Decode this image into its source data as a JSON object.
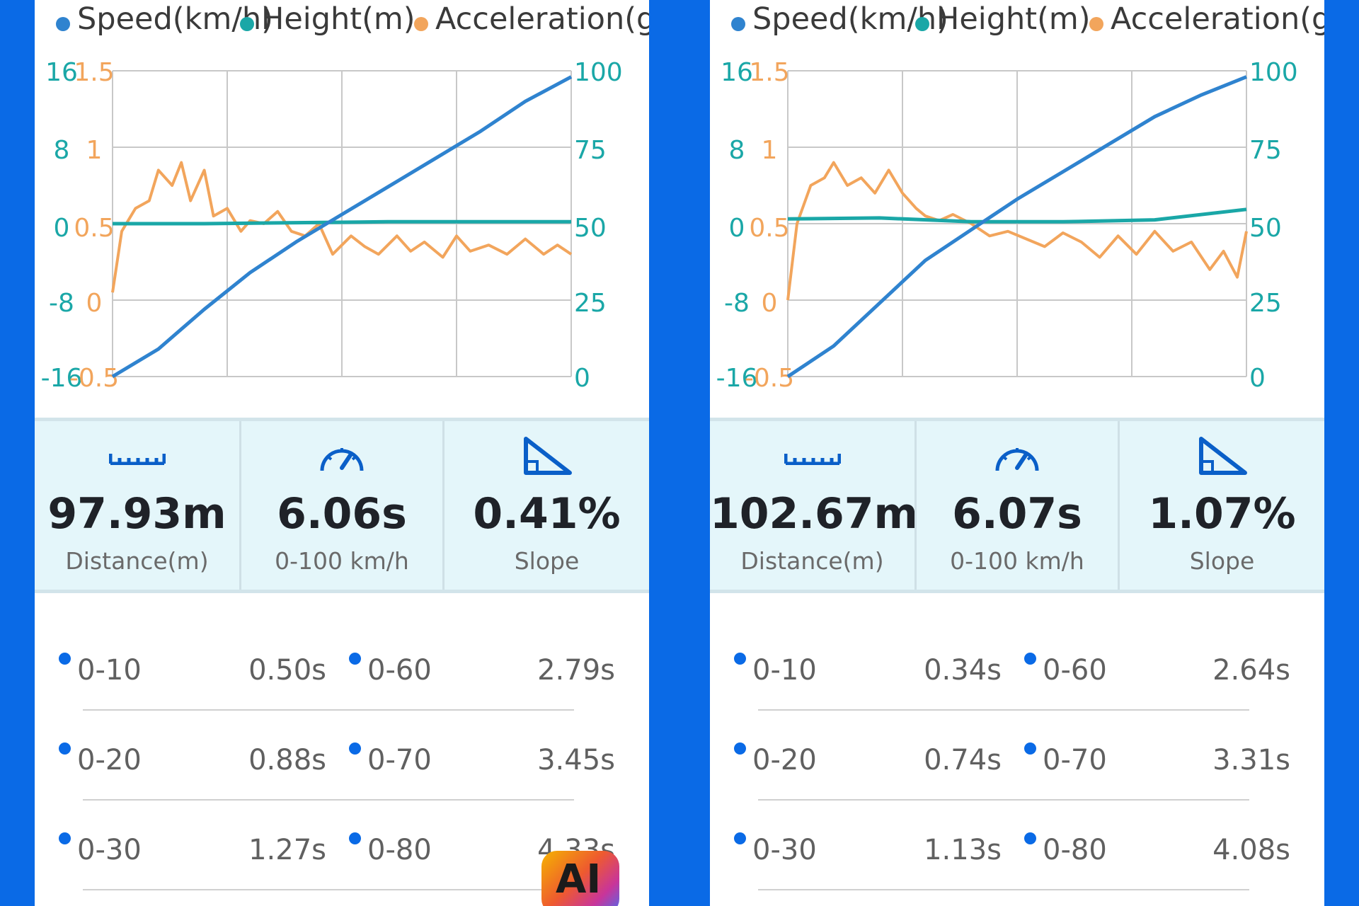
{
  "colors": {
    "speed": "#2f83cf",
    "height": "#1aa7a7",
    "acceleration": "#f2a55c",
    "accent": "#0a6ae6"
  },
  "legend": [
    {
      "label": "Speed(km/h)",
      "color": "#2f83cf"
    },
    {
      "label": "Height(m)",
      "color": "#1aa7a7"
    },
    {
      "label": "Acceleration(g)",
      "color": "#f2a55c"
    }
  ],
  "axes": {
    "height_ticks": [
      "16",
      "8",
      "0",
      "-8",
      "-16"
    ],
    "accel_ticks": [
      "1.5",
      "1",
      "0.5",
      "0",
      "-0.5"
    ],
    "speed_ticks": [
      "100",
      "75",
      "50",
      "25",
      "0"
    ]
  },
  "panels": [
    {
      "stats": [
        {
          "icon": "ruler-icon",
          "value": "97.93m",
          "label": "Distance(m)"
        },
        {
          "icon": "speedometer-icon",
          "value": "6.06s",
          "label": "0-100 km/h"
        },
        {
          "icon": "slope-icon",
          "value": "0.41%",
          "label": "Slope"
        }
      ],
      "splits": [
        {
          "range_a": "0-10",
          "time_a": "0.50s",
          "range_b": "0-60",
          "time_b": "2.79s"
        },
        {
          "range_a": "0-20",
          "time_a": "0.88s",
          "range_b": "0-70",
          "time_b": "3.45s"
        },
        {
          "range_a": "0-30",
          "time_a": "1.27s",
          "range_b": "0-80",
          "time_b": "4.33s"
        }
      ]
    },
    {
      "stats": [
        {
          "icon": "ruler-icon",
          "value": "102.67m",
          "label": "Distance(m)"
        },
        {
          "icon": "speedometer-icon",
          "value": "6.07s",
          "label": "0-100 km/h"
        },
        {
          "icon": "slope-icon",
          "value": "1.07%",
          "label": "Slope"
        }
      ],
      "splits": [
        {
          "range_a": "0-10",
          "time_a": "0.34s",
          "range_b": "0-60",
          "time_b": "2.64s"
        },
        {
          "range_a": "0-20",
          "time_a": "0.74s",
          "range_b": "0-70",
          "time_b": "3.31s"
        },
        {
          "range_a": "0-30",
          "time_a": "1.13s",
          "range_b": "0-80",
          "time_b": "4.08s"
        }
      ]
    }
  ],
  "overlay_badge": "AI",
  "chart_data": [
    {
      "type": "line",
      "x_range": [
        0,
        1
      ],
      "series": [
        {
          "name": "Speed(km/h)",
          "axis": "right",
          "ylim": [
            0,
            100
          ],
          "x": [
            0,
            0.1,
            0.2,
            0.3,
            0.4,
            0.5,
            0.6,
            0.7,
            0.8,
            0.9,
            1.0
          ],
          "values": [
            0,
            9,
            22,
            34,
            44,
            53,
            62,
            71,
            80,
            90,
            98
          ]
        },
        {
          "name": "Height(m)",
          "axis": "left-outer",
          "ylim": [
            -16,
            16
          ],
          "x": [
            0,
            0.2,
            0.4,
            0.6,
            0.8,
            1.0
          ],
          "values": [
            0,
            0,
            0.1,
            0.2,
            0.2,
            0.2
          ]
        },
        {
          "name": "Acceleration(g)",
          "axis": "left-inner",
          "ylim": [
            -0.5,
            1.5
          ],
          "x": [
            0,
            0.02,
            0.05,
            0.08,
            0.1,
            0.13,
            0.15,
            0.17,
            0.2,
            0.22,
            0.25,
            0.28,
            0.3,
            0.33,
            0.36,
            0.39,
            0.42,
            0.45,
            0.48,
            0.52,
            0.55,
            0.58,
            0.62,
            0.65,
            0.68,
            0.72,
            0.75,
            0.78,
            0.82,
            0.86,
            0.9,
            0.94,
            0.97,
            1.0
          ],
          "values": [
            0.05,
            0.45,
            0.6,
            0.65,
            0.85,
            0.75,
            0.9,
            0.65,
            0.85,
            0.55,
            0.6,
            0.45,
            0.52,
            0.5,
            0.58,
            0.45,
            0.42,
            0.5,
            0.3,
            0.42,
            0.35,
            0.3,
            0.42,
            0.32,
            0.38,
            0.28,
            0.42,
            0.32,
            0.36,
            0.3,
            0.4,
            0.3,
            0.36,
            0.3
          ]
        }
      ]
    },
    {
      "type": "line",
      "x_range": [
        0,
        1
      ],
      "series": [
        {
          "name": "Speed(km/h)",
          "axis": "right",
          "ylim": [
            0,
            100
          ],
          "x": [
            0,
            0.1,
            0.2,
            0.3,
            0.4,
            0.5,
            0.6,
            0.7,
            0.8,
            0.9,
            1.0
          ],
          "values": [
            0,
            10,
            24,
            38,
            48,
            58,
            67,
            76,
            85,
            92,
            98
          ]
        },
        {
          "name": "Height(m)",
          "axis": "left-outer",
          "ylim": [
            -16,
            16
          ],
          "x": [
            0,
            0.2,
            0.4,
            0.6,
            0.8,
            1.0
          ],
          "values": [
            0.5,
            0.6,
            0.2,
            0.2,
            0.4,
            1.5
          ]
        },
        {
          "name": "Acceleration(g)",
          "axis": "left-inner",
          "ylim": [
            -0.5,
            1.5
          ],
          "x": [
            0,
            0.02,
            0.05,
            0.08,
            0.1,
            0.13,
            0.16,
            0.19,
            0.22,
            0.25,
            0.28,
            0.3,
            0.33,
            0.36,
            0.4,
            0.44,
            0.48,
            0.52,
            0.56,
            0.6,
            0.64,
            0.68,
            0.72,
            0.76,
            0.8,
            0.84,
            0.88,
            0.92,
            0.95,
            0.98,
            1.0
          ],
          "values": [
            0.0,
            0.5,
            0.75,
            0.8,
            0.9,
            0.75,
            0.8,
            0.7,
            0.85,
            0.7,
            0.6,
            0.55,
            0.52,
            0.56,
            0.5,
            0.42,
            0.45,
            0.4,
            0.35,
            0.44,
            0.38,
            0.28,
            0.42,
            0.3,
            0.45,
            0.32,
            0.38,
            0.2,
            0.32,
            0.15,
            0.45
          ]
        }
      ]
    }
  ]
}
